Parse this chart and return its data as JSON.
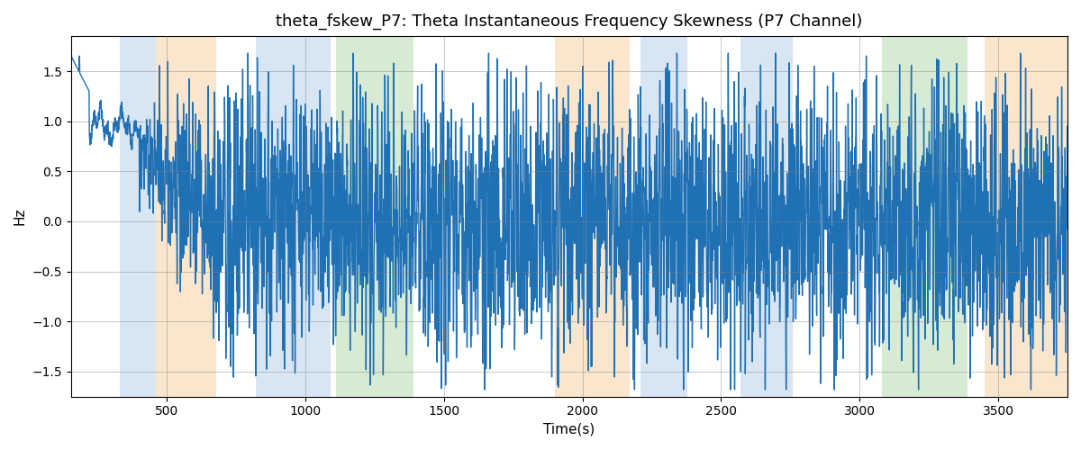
{
  "title": "theta_fskew_P7: Theta Instantaneous Frequency Skewness (P7 Channel)",
  "xlabel": "Time(s)",
  "ylabel": "Hz",
  "xlim": [
    155,
    3750
  ],
  "ylim": [
    -1.75,
    1.85
  ],
  "line_color": "#2070b4",
  "line_width": 1.0,
  "yticks": [
    -1.5,
    -1.0,
    -0.5,
    0.0,
    0.5,
    1.0,
    1.5
  ],
  "xticks": [
    500,
    1000,
    1500,
    2000,
    2500,
    3000,
    3500
  ],
  "bands": [
    {
      "xmin": 330,
      "xmax": 460,
      "color": "#aac8e8",
      "alpha": 0.45
    },
    {
      "xmin": 460,
      "xmax": 680,
      "color": "#f5c990",
      "alpha": 0.45
    },
    {
      "xmin": 820,
      "xmax": 1000,
      "color": "#aac8e8",
      "alpha": 0.45
    },
    {
      "xmin": 1000,
      "xmax": 1090,
      "color": "#aac8e8",
      "alpha": 0.45
    },
    {
      "xmin": 1110,
      "xmax": 1390,
      "color": "#a8d4a0",
      "alpha": 0.45
    },
    {
      "xmin": 1900,
      "xmax": 2170,
      "color": "#f5c990",
      "alpha": 0.45
    },
    {
      "xmin": 2210,
      "xmax": 2380,
      "color": "#aac8e8",
      "alpha": 0.45
    },
    {
      "xmin": 2570,
      "xmax": 2760,
      "color": "#aac8e8",
      "alpha": 0.45
    },
    {
      "xmin": 3080,
      "xmax": 3390,
      "color": "#a8d4a0",
      "alpha": 0.45
    },
    {
      "xmin": 3450,
      "xmax": 3750,
      "color": "#f5c990",
      "alpha": 0.45
    }
  ],
  "seed": 17,
  "num_points": 7200
}
